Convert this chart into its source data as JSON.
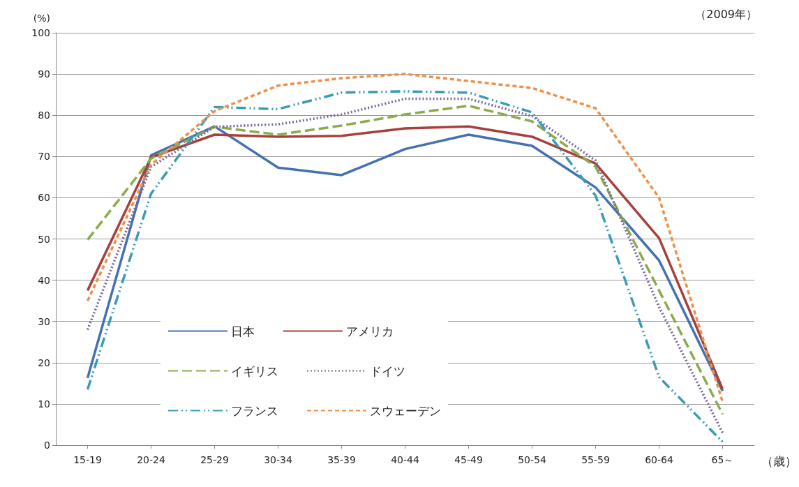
{
  "chart_data": {
    "type": "line",
    "ylabel": "(%)",
    "xlabel": "（歳）",
    "annotations": [
      "（2009年）"
    ],
    "categories": [
      "15-19",
      "20-24",
      "25-29",
      "30-34",
      "35-39",
      "40-44",
      "45-49",
      "50-54",
      "55-59",
      "60-64",
      "65～"
    ],
    "ylim": [
      0,
      100
    ],
    "yticks": [
      0,
      10,
      20,
      30,
      40,
      50,
      60,
      70,
      80,
      90,
      100
    ],
    "grid": "y",
    "legend": "bottom left",
    "marker": "none",
    "series": [
      {
        "name": "日本",
        "color": "#4471b0",
        "line_style": "solid",
        "values": [
          16.3,
          70.3,
          77.3,
          67.3,
          65.5,
          71.8,
          75.3,
          72.6,
          62.5,
          44.8,
          13.1
        ]
      },
      {
        "name": "アメリカ",
        "color": "#a6403c",
        "line_style": "solid",
        "values": [
          37.5,
          69.8,
          75.3,
          74.8,
          75.0,
          76.8,
          77.3,
          74.8,
          68.3,
          50.2,
          13.6
        ]
      },
      {
        "name": "イギリス",
        "color": "#8bab4c",
        "line_style": "dashed",
        "values": [
          49.8,
          69.5,
          77.2,
          75.3,
          77.5,
          80.2,
          82.3,
          78.5,
          67.5,
          37.5,
          7.5
        ]
      },
      {
        "name": "ドイツ",
        "color": "#7a62a0",
        "line_style": "dotted",
        "values": [
          28.0,
          67.5,
          77.2,
          77.8,
          80.2,
          84.0,
          84.0,
          79.8,
          69.0,
          33.5,
          3.0
        ]
      },
      {
        "name": "フランス",
        "color": "#3a9cb4",
        "line_style": "dashdot",
        "values": [
          13.5,
          61.0,
          82.0,
          81.5,
          85.5,
          85.8,
          85.5,
          80.7,
          60.5,
          16.5,
          0.8
        ]
      },
      {
        "name": "スウェーデン",
        "color": "#ef9049",
        "line_style": "dashed",
        "values": [
          35.0,
          68.0,
          81.0,
          87.2,
          89.0,
          90.0,
          88.3,
          86.6,
          81.7,
          60.0,
          10.5
        ]
      }
    ]
  }
}
